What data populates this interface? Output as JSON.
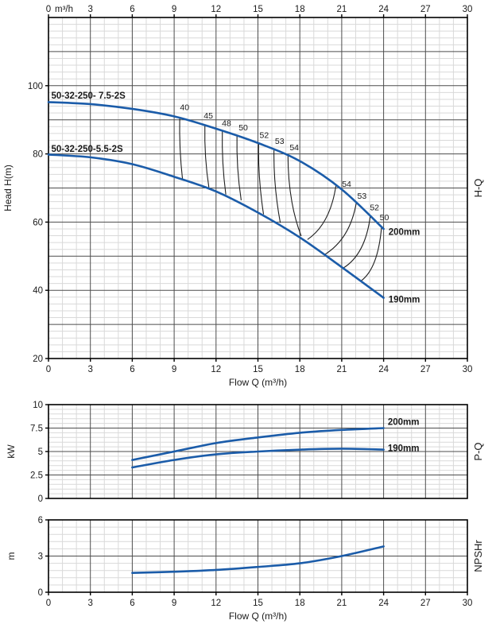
{
  "page": {
    "background": "#ffffff"
  },
  "colors": {
    "curve": "#1b5ca9",
    "grid_minor": "#d9d9d9",
    "grid_major": "#4d4d4d",
    "border": "#000000",
    "efficiency_line": "#1f1f1f",
    "text": "#1a1a1a"
  },
  "chart_data": [
    {
      "id": "hq",
      "type": "line",
      "right_label": "H-Q",
      "xlabel": "Flow Q (m³/h)",
      "ylabel": "Head H(m)",
      "top_axis_unit": "m³/h",
      "xlim": [
        0,
        30
      ],
      "ylim": [
        20,
        120
      ],
      "x_major": 3,
      "x_minor": 1,
      "y_major": 10,
      "y_minor": 2,
      "top_tick_values": [
        0,
        3,
        6,
        9,
        12,
        15,
        18,
        21,
        24,
        27,
        30
      ],
      "x_tick_values": [
        0,
        3,
        6,
        9,
        12,
        15,
        18,
        21,
        24,
        27,
        30
      ],
      "y_tick_values": [
        20,
        40,
        60,
        80,
        100
      ],
      "series": [
        {
          "name": "200mm",
          "points": [
            [
              0,
              95.2
            ],
            [
              3,
              94.6
            ],
            [
              6,
              93.2
            ],
            [
              9,
              91.0
            ],
            [
              12,
              87.4
            ],
            [
              15,
              83.2
            ],
            [
              18,
              77.9
            ],
            [
              21,
              69.6
            ],
            [
              24,
              58.0
            ]
          ]
        },
        {
          "name": "190mm",
          "points": [
            [
              0,
              79.8
            ],
            [
              3,
              79.0
            ],
            [
              6,
              77.0
            ],
            [
              9,
              73.3
            ],
            [
              12,
              69.0
            ],
            [
              15,
              62.8
            ],
            [
              18,
              55.5
            ],
            [
              21,
              46.8
            ],
            [
              24,
              37.8
            ]
          ]
        }
      ],
      "efficiency_lines": [
        {
          "label": "40",
          "p1": [
            9.4,
            90.8
          ],
          "c": [
            9.35,
            81.5
          ],
          "p2": [
            9.6,
            72.5
          ],
          "label_pos": [
            9.75,
            92.8
          ]
        },
        {
          "label": "45",
          "p1": [
            11.2,
            88.4
          ],
          "c": [
            11.15,
            79.0
          ],
          "p2": [
            11.5,
            69.8
          ],
          "label_pos": [
            11.45,
            90.4
          ]
        },
        {
          "label": "48",
          "p1": [
            12.45,
            86.8
          ],
          "c": [
            12.4,
            77.5
          ],
          "p2": [
            12.7,
            68.1
          ],
          "label_pos": [
            12.75,
            88.2
          ]
        },
        {
          "label": "50",
          "p1": [
            13.5,
            85.4
          ],
          "c": [
            13.45,
            76.0
          ],
          "p2": [
            13.8,
            66.4
          ],
          "label_pos": [
            13.95,
            86.9
          ]
        },
        {
          "label": "52",
          "p1": [
            15.05,
            83.2
          ],
          "c": [
            15.0,
            73.0
          ],
          "p2": [
            15.4,
            62.3
          ],
          "label_pos": [
            15.45,
            84.7
          ]
        },
        {
          "label": "53",
          "p1": [
            16.15,
            81.5
          ],
          "c": [
            16.1,
            71.0
          ],
          "p2": [
            16.6,
            59.8
          ],
          "label_pos": [
            16.55,
            82.9
          ]
        },
        {
          "label": "54",
          "p1": [
            17.15,
            79.9
          ],
          "c": [
            17.15,
            66.0
          ],
          "p2": [
            18.1,
            55.9
          ],
          "label_pos": [
            17.6,
            81.1
          ]
        },
        {
          "label": "54",
          "p1": [
            20.6,
            71.1
          ],
          "c": [
            20.2,
            59.5
          ],
          "p2": [
            18.55,
            54.9
          ],
          "label_pos": [
            21.35,
            70.3
          ]
        },
        {
          "label": "53",
          "p1": [
            22.05,
            65.8
          ],
          "c": [
            21.6,
            55.0
          ],
          "p2": [
            19.75,
            50.4
          ],
          "label_pos": [
            22.45,
            66.9
          ]
        },
        {
          "label": "52",
          "p1": [
            23.05,
            61.9
          ],
          "c": [
            22.7,
            50.5
          ],
          "p2": [
            21.1,
            46.5
          ],
          "label_pos": [
            23.35,
            63.5
          ]
        },
        {
          "label": "50",
          "p1": [
            23.85,
            58.5
          ],
          "c": [
            23.6,
            46.5
          ],
          "p2": [
            22.4,
            42.8
          ],
          "label_pos": [
            24.05,
            60.6
          ]
        }
      ],
      "annotations": [
        {
          "text": "50-32-250- 7.5-2S",
          "x": 0.2,
          "y": 96.2,
          "bold": true,
          "anchor": "start"
        },
        {
          "text": "50-32-250-5.5-2S",
          "x": 0.2,
          "y": 80.6,
          "bold": true,
          "anchor": "start"
        },
        {
          "text": "200mm",
          "x": 24.35,
          "y": 56.2,
          "bold": true,
          "anchor": "start"
        },
        {
          "text": "190mm",
          "x": 24.35,
          "y": 36.4,
          "bold": true,
          "anchor": "start"
        }
      ]
    },
    {
      "id": "pq",
      "type": "line",
      "right_label": "P-Q",
      "ylabel": "kW",
      "xlim": [
        0,
        30
      ],
      "ylim": [
        0,
        10
      ],
      "x_major": 3,
      "x_minor": 1,
      "y_major": 2.5,
      "y_minor": 0.5,
      "y_tick_values": [
        0,
        2.5,
        5,
        7.5,
        10
      ],
      "y_tick_labels": [
        "0",
        "2.5",
        "5",
        "7.5",
        "10"
      ],
      "series": [
        {
          "name": "200mm",
          "points": [
            [
              6,
              4.1
            ],
            [
              9,
              5.0
            ],
            [
              12,
              5.9
            ],
            [
              15,
              6.5
            ],
            [
              18,
              7.0
            ],
            [
              21,
              7.3
            ],
            [
              24,
              7.5
            ]
          ]
        },
        {
          "name": "190mm",
          "points": [
            [
              6,
              3.3
            ],
            [
              9,
              4.1
            ],
            [
              12,
              4.7
            ],
            [
              15,
              5.0
            ],
            [
              18,
              5.2
            ],
            [
              21,
              5.3
            ],
            [
              24,
              5.2
            ]
          ]
        }
      ],
      "efficiency_lines": [],
      "annotations": [
        {
          "text": "200mm",
          "x": 24.3,
          "y": 7.85,
          "bold": true,
          "anchor": "start"
        },
        {
          "text": "190mm",
          "x": 24.3,
          "y": 5.05,
          "bold": true,
          "anchor": "start"
        }
      ]
    },
    {
      "id": "npsh",
      "type": "line",
      "right_label": "NPSHr",
      "ylabel": "m",
      "xlabel": "Flow Q (m³/h)",
      "xlim": [
        0,
        30
      ],
      "ylim": [
        0,
        6
      ],
      "x_major": 3,
      "x_minor": 1,
      "y_major": 3,
      "y_minor": 0.6,
      "x_tick_values": [
        0,
        3,
        6,
        9,
        12,
        15,
        18,
        21,
        24,
        27,
        30
      ],
      "y_tick_values": [
        0,
        3,
        6
      ],
      "series": [
        {
          "name": "NPSHr",
          "points": [
            [
              6,
              1.6
            ],
            [
              9,
              1.7
            ],
            [
              12,
              1.85
            ],
            [
              15,
              2.1
            ],
            [
              18,
              2.4
            ],
            [
              21,
              3.0
            ],
            [
              24,
              3.8
            ]
          ]
        }
      ],
      "efficiency_lines": [],
      "annotations": []
    }
  ]
}
